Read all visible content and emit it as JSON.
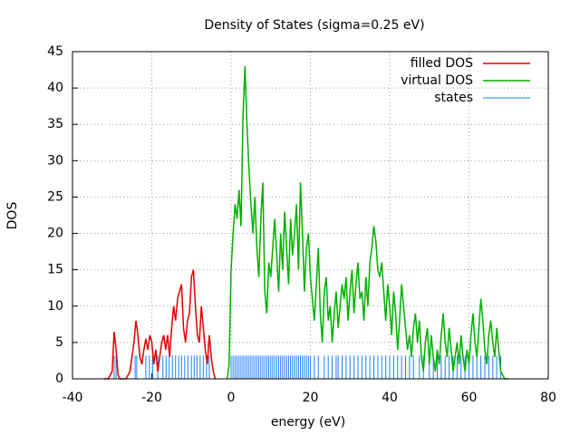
{
  "chart_data": {
    "type": "line",
    "title": "Density of States (sigma=0.25 eV)",
    "xlabel": "energy (eV)",
    "ylabel": "DOS",
    "xlim": [
      -40,
      80
    ],
    "xticks": [
      -40,
      -20,
      0,
      20,
      40,
      60,
      80
    ],
    "ylim": [
      0,
      45
    ],
    "yticks": [
      0,
      5,
      10,
      15,
      20,
      25,
      30,
      35,
      40,
      45
    ],
    "grid": true,
    "legend": "top-right",
    "series": [
      {
        "name": "filled DOS",
        "color": "#e00000",
        "style": "lines",
        "x": [
          -32,
          -31.5,
          -31,
          -30.5,
          -30,
          -29.5,
          -29,
          -28.5,
          -28,
          -27.5,
          -27,
          -26.5,
          -26,
          -25.5,
          -25,
          -24.5,
          -24,
          -23.5,
          -23,
          -22.5,
          -22,
          -21.5,
          -21,
          -20.5,
          -20,
          -19.5,
          -19,
          -18.5,
          -18,
          -17.5,
          -17,
          -16.5,
          -16,
          -15.5,
          -15,
          -14.5,
          -14,
          -13.5,
          -13,
          -12.5,
          -12,
          -11.5,
          -11,
          -10.5,
          -10,
          -9.5,
          -9,
          -8.5,
          -8,
          -7.5,
          -7,
          -6.5,
          -6,
          -5.5,
          -5,
          -4.5,
          -4
        ],
        "values": [
          0,
          0,
          0,
          0.5,
          1,
          6.5,
          4,
          0.5,
          0,
          0,
          0,
          0,
          0.5,
          1,
          3,
          5,
          8,
          6,
          3,
          2,
          4,
          5.5,
          4,
          6,
          5,
          2,
          4,
          1,
          3,
          5,
          6,
          4,
          6,
          3,
          7,
          10,
          8,
          11,
          12,
          13,
          7,
          5,
          8,
          9,
          14,
          15,
          10,
          6,
          5,
          10,
          7,
          4,
          2,
          6,
          3,
          1,
          0
        ]
      },
      {
        "name": "virtual DOS",
        "color": "#00b000",
        "style": "lines",
        "x": [
          -1,
          -0.5,
          0,
          0.5,
          1,
          1.5,
          2,
          2.5,
          3,
          3.5,
          4,
          4.5,
          5,
          5.5,
          6,
          6.5,
          7,
          7.5,
          8,
          8.5,
          9,
          9.5,
          10,
          10.5,
          11,
          11.5,
          12,
          12.5,
          13,
          13.5,
          14,
          14.5,
          15,
          15.5,
          16,
          16.5,
          17,
          17.5,
          18,
          18.5,
          19,
          19.5,
          20,
          20.5,
          21,
          21.5,
          22,
          22.5,
          23,
          23.5,
          24,
          24.5,
          25,
          25.5,
          26,
          26.5,
          27,
          27.5,
          28,
          28.5,
          29,
          29.5,
          30,
          30.5,
          31,
          31.5,
          32,
          32.5,
          33,
          33.5,
          34,
          34.5,
          35,
          35.5,
          36,
          36.5,
          37,
          37.5,
          38,
          38.5,
          39,
          39.5,
          40,
          40.5,
          41,
          41.5,
          42,
          42.5,
          43,
          43.5,
          44,
          44.5,
          45,
          45.5,
          46,
          46.5,
          47,
          47.5,
          48,
          48.5,
          49,
          49.5,
          50,
          50.5,
          51,
          51.5,
          52,
          52.5,
          53,
          53.5,
          54,
          54.5,
          55,
          55.5,
          56,
          56.5,
          57,
          57.5,
          58,
          58.5,
          59,
          59.5,
          60,
          60.5,
          61,
          61.5,
          62,
          62.5,
          63,
          63.5,
          64,
          64.5,
          65,
          65.5,
          66,
          66.5,
          67,
          67.5,
          68,
          68.5,
          69,
          69.5,
          70
        ],
        "values": [
          0,
          2,
          15,
          20,
          24,
          22,
          26,
          21,
          36,
          43,
          35,
          29,
          24,
          20,
          25,
          18,
          14,
          22,
          27,
          12,
          9,
          16,
          14,
          18,
          22,
          17,
          12,
          20,
          15,
          23,
          18,
          13,
          22,
          17,
          20,
          24,
          15,
          27,
          20,
          12,
          18,
          20,
          14,
          11,
          8,
          13,
          18,
          9,
          5,
          12,
          14,
          8,
          10,
          5,
          9,
          12,
          7,
          10,
          13,
          11,
          14,
          8,
          12,
          15,
          9,
          13,
          16,
          11,
          12,
          8,
          14,
          10,
          16,
          18,
          21,
          19,
          15,
          14,
          16,
          12,
          8,
          13,
          10,
          6,
          12,
          9,
          4,
          8,
          13,
          10,
          7,
          4,
          6,
          3,
          7,
          9,
          5,
          8,
          3,
          1,
          5,
          7,
          2,
          6,
          3,
          1,
          4,
          2,
          6,
          9,
          5,
          3,
          7,
          4,
          1,
          3,
          5,
          2,
          6,
          3,
          1,
          4,
          2,
          6,
          9,
          5,
          3,
          7,
          11,
          8,
          4,
          2,
          6,
          8,
          5,
          3,
          7,
          4,
          1,
          0.5,
          0,
          0,
          0
        ]
      },
      {
        "name": "states",
        "color": "#1e80ff",
        "style": "impulses",
        "x": [
          -29.5,
          -29,
          -24.2,
          -23.8,
          -21.5,
          -20.6,
          -19.8,
          -18.5,
          -17.2,
          -16.4,
          -15.6,
          -14.8,
          -14,
          -13.2,
          -12.5,
          -11.7,
          -10.9,
          -10,
          -9.3,
          -8.6,
          -7.8,
          -7,
          -6.2,
          -5.5,
          0,
          0.5,
          1,
          1.5,
          2,
          2.5,
          3,
          3.5,
          4,
          4.5,
          5,
          5.5,
          6,
          6.5,
          7,
          7.5,
          8,
          8.5,
          9,
          9.5,
          10,
          10.5,
          11,
          11.5,
          12,
          12.5,
          13,
          13.5,
          14,
          14.5,
          15,
          15.5,
          16,
          16.5,
          17,
          17.5,
          18,
          18.5,
          19,
          19.5,
          20,
          21,
          22,
          23.5,
          24.5,
          25.5,
          26.5,
          27,
          28,
          29,
          30,
          31,
          32,
          33,
          34,
          35,
          36,
          37,
          38,
          39,
          40,
          41,
          42,
          43,
          44,
          45,
          46,
          47.5,
          48.5,
          50,
          51,
          52,
          53,
          54,
          55,
          56,
          57,
          58,
          59,
          60,
          61,
          62,
          63,
          64,
          65,
          66,
          67,
          68
        ],
        "values": [
          3.2,
          3.2,
          3.2,
          3.2,
          3.2,
          3.2,
          3.2,
          3.2,
          3.2,
          3.2,
          3.2,
          3.2,
          3.2,
          3.2,
          3.2,
          3.2,
          3.2,
          3.2,
          3.2,
          3.2,
          3.2,
          3.2,
          3.2,
          3.2,
          3.2,
          3.2,
          3.2,
          3.2,
          3.2,
          3.2,
          3.2,
          3.2,
          3.2,
          3.2,
          3.2,
          3.2,
          3.2,
          3.2,
          3.2,
          3.2,
          3.2,
          3.2,
          3.2,
          3.2,
          3.2,
          3.2,
          3.2,
          3.2,
          3.2,
          3.2,
          3.2,
          3.2,
          3.2,
          3.2,
          3.2,
          3.2,
          3.2,
          3.2,
          3.2,
          3.2,
          3.2,
          3.2,
          3.2,
          3.2,
          3.2,
          3.2,
          3.2,
          3.2,
          3.2,
          3.2,
          3.2,
          3.2,
          3.2,
          3.2,
          3.2,
          3.2,
          3.2,
          3.2,
          3.2,
          3.2,
          3.2,
          3.2,
          3.2,
          3.2,
          3.2,
          3.2,
          3.2,
          3.2,
          3.2,
          3.2,
          3.2,
          3.2,
          3.2,
          3.2,
          3.2,
          3.2,
          3.2,
          3.2,
          3.2,
          3.2,
          3.2,
          3.2,
          3.2,
          3.2,
          3.2,
          3.2,
          3.2,
          3.2,
          3.2,
          3.2,
          3.2,
          3.2
        ]
      }
    ]
  }
}
